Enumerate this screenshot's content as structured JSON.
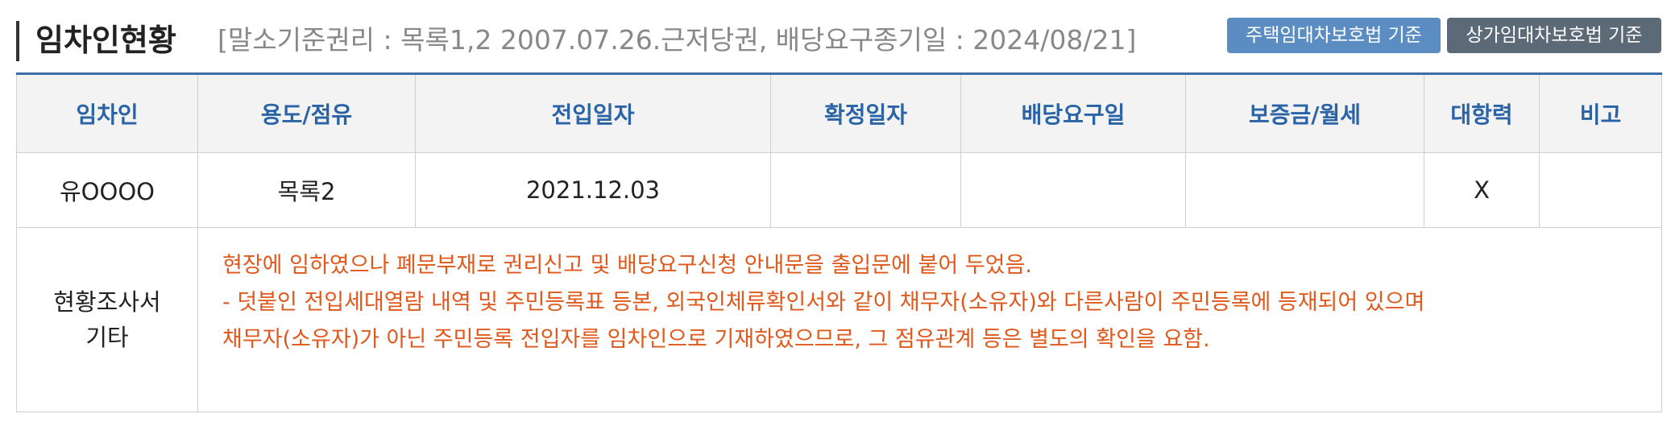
{
  "header": {
    "title": "임차인현황",
    "subinfo": "[말소기준권리 : 목록1,2 2007.07.26.근저당권, 배당요구종기일 : 2024/08/21]",
    "buttons": {
      "house_law": "주택임대차보호법 기준",
      "commercial_law": "상가임대차보호법 기준"
    }
  },
  "table": {
    "columns": [
      "임차인",
      "용도/점유",
      "전입일자",
      "확정일자",
      "배당요구일",
      "보증금/월세",
      "대항력",
      "비고"
    ],
    "rows": [
      [
        "유OOOO",
        "목록2",
        "2021.12.03",
        "",
        "",
        "",
        "X",
        ""
      ]
    ]
  },
  "survey": {
    "label_line1": "현황조사서",
    "label_line2": "기타",
    "lines": [
      "현장에 임하였으나 폐문부재로 권리신고 및 배당요구신청 안내문을 출입문에 붙어 두었음.",
      "- 덧붙인 전입세대열람 내역 및 주민등록표 등본, 외국인체류확인서와 같이 채무자(소유자)와 다른사람이 주민등록에 등재되어 있으며",
      "채무자(소유자)가 아닌 주민등록 전입자를 임차인으로 기재하였으므로, 그 점유관계 등은 별도의 확인을 요함."
    ]
  },
  "colors": {
    "accent_blue": "#2a63a6",
    "house_button": "#5b8dc3",
    "commercial_button": "#5c6a78",
    "survey_text": "#e0581b"
  }
}
